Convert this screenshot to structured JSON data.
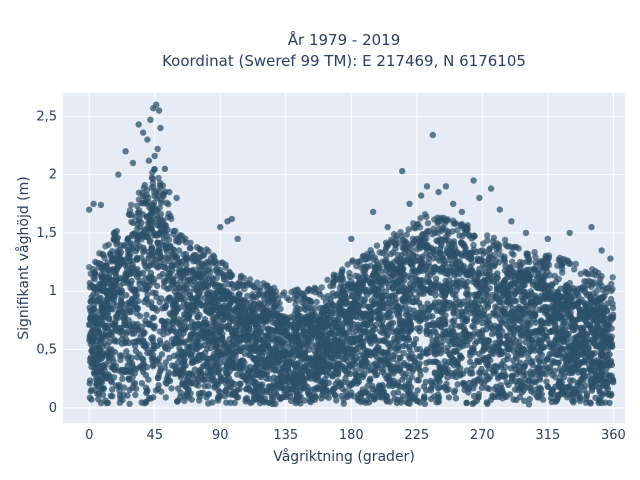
{
  "chart_data": {
    "type": "scatter",
    "title_line1": "År 1979 - 2019",
    "title_line2": "Koordinat (Sweref 99 TM): E 217469, N 6176105",
    "xlabel": "Vågriktning (grader)",
    "ylabel": "Signifikant våghöjd (m)",
    "xlim": [
      -18,
      368
    ],
    "ylim": [
      -0.13,
      2.7
    ],
    "xticks": [
      0,
      45,
      90,
      135,
      180,
      225,
      270,
      315,
      360
    ],
    "xtick_labels": [
      "0",
      "45",
      "90",
      "135",
      "180",
      "225",
      "270",
      "315",
      "360"
    ],
    "yticks": [
      0,
      0.5,
      1,
      1.5,
      2,
      2.5
    ],
    "ytick_labels": [
      "0",
      "0,5",
      "1",
      "1,5",
      "2",
      "2,5"
    ],
    "grid": true,
    "marker_color": "#2c5068",
    "background_color": "#e5ecf6",
    "envelope": {
      "x": [
        0,
        10,
        20,
        30,
        40,
        45,
        50,
        55,
        60,
        70,
        80,
        90,
        100,
        110,
        120,
        135,
        150,
        160,
        170,
        180,
        190,
        200,
        210,
        220,
        225,
        230,
        240,
        250,
        260,
        270,
        280,
        290,
        300,
        315,
        330,
        340,
        350,
        360
      ],
      "y": [
        1.05,
        1.15,
        1.35,
        1.55,
        1.75,
        1.85,
        1.75,
        1.5,
        1.3,
        1.2,
        1.15,
        1.05,
        0.95,
        0.9,
        0.85,
        0.8,
        0.8,
        0.85,
        0.95,
        1.05,
        1.1,
        1.2,
        1.28,
        1.35,
        1.4,
        1.45,
        1.45,
        1.4,
        1.35,
        1.3,
        1.25,
        1.2,
        1.15,
        1.1,
        1.05,
        1.0,
        0.95,
        0.9
      ]
    },
    "outliers": [
      {
        "x": 0,
        "y": 1.7
      },
      {
        "x": 3,
        "y": 1.75
      },
      {
        "x": 8,
        "y": 1.74
      },
      {
        "x": 20,
        "y": 2.0
      },
      {
        "x": 25,
        "y": 2.2
      },
      {
        "x": 30,
        "y": 2.1
      },
      {
        "x": 34,
        "y": 2.43
      },
      {
        "x": 37,
        "y": 2.36
      },
      {
        "x": 40,
        "y": 2.3
      },
      {
        "x": 42,
        "y": 2.47
      },
      {
        "x": 44,
        "y": 2.57
      },
      {
        "x": 46,
        "y": 2.6
      },
      {
        "x": 48,
        "y": 2.55
      },
      {
        "x": 49,
        "y": 2.4
      },
      {
        "x": 45,
        "y": 2.16
      },
      {
        "x": 41,
        "y": 2.12
      },
      {
        "x": 47,
        "y": 2.22
      },
      {
        "x": 52,
        "y": 2.05
      },
      {
        "x": 55,
        "y": 1.85
      },
      {
        "x": 60,
        "y": 1.8
      },
      {
        "x": 90,
        "y": 1.55
      },
      {
        "x": 95,
        "y": 1.6
      },
      {
        "x": 98,
        "y": 1.62
      },
      {
        "x": 102,
        "y": 1.45
      },
      {
        "x": 150,
        "y": 1.0
      },
      {
        "x": 170,
        "y": 1.1
      },
      {
        "x": 180,
        "y": 1.45
      },
      {
        "x": 195,
        "y": 1.68
      },
      {
        "x": 205,
        "y": 1.55
      },
      {
        "x": 215,
        "y": 2.03
      },
      {
        "x": 220,
        "y": 1.75
      },
      {
        "x": 228,
        "y": 1.82
      },
      {
        "x": 232,
        "y": 1.9
      },
      {
        "x": 236,
        "y": 2.34
      },
      {
        "x": 240,
        "y": 1.85
      },
      {
        "x": 245,
        "y": 1.9
      },
      {
        "x": 250,
        "y": 1.75
      },
      {
        "x": 256,
        "y": 1.68
      },
      {
        "x": 264,
        "y": 1.95
      },
      {
        "x": 268,
        "y": 1.8
      },
      {
        "x": 276,
        "y": 1.88
      },
      {
        "x": 282,
        "y": 1.7
      },
      {
        "x": 290,
        "y": 1.6
      },
      {
        "x": 300,
        "y": 1.5
      },
      {
        "x": 315,
        "y": 1.45
      },
      {
        "x": 330,
        "y": 1.5
      },
      {
        "x": 345,
        "y": 1.55
      },
      {
        "x": 352,
        "y": 1.35
      },
      {
        "x": 358,
        "y": 1.28
      }
    ]
  }
}
